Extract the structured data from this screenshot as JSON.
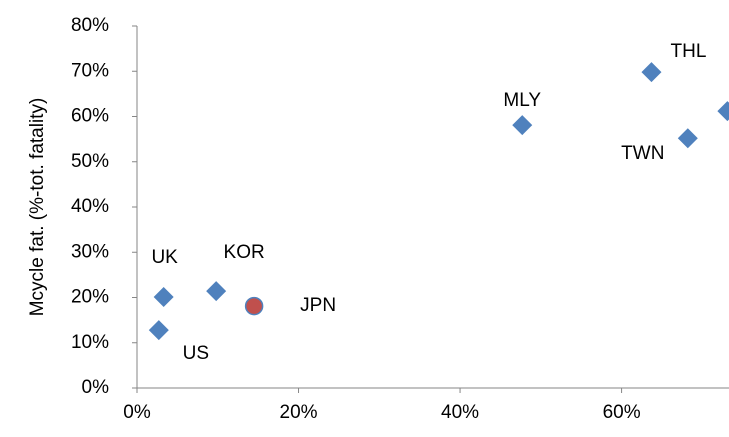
{
  "chart_data": {
    "type": "scatter",
    "y_label": "Mcycle fat. (%-tot. fatality)",
    "labels": [
      "US",
      "UK",
      "KOR",
      "JPN",
      "MLY",
      "THL",
      "TWN",
      null
    ],
    "x": [
      2.7,
      3.3,
      9.8,
      14.5,
      47.7,
      63.7,
      68.2,
      73.1
    ],
    "values": [
      12.8,
      20.1,
      21.4,
      18.1,
      58.1,
      69.8,
      55.2,
      61.2
    ],
    "colors": [
      "#4f81bd",
      "#4f81bd",
      "#4f81bd",
      "#c0504d",
      "#4f81bd",
      "#4f81bd",
      "#4f81bd",
      "#4f81bd"
    ],
    "markers": [
      "diamond",
      "diamond",
      "diamond",
      "circle",
      "diamond",
      "diamond",
      "diamond",
      "diamond"
    ],
    "xlim": [
      0,
      73.3
    ],
    "ylim": [
      0,
      80
    ],
    "xticks": [
      {
        "value": 0,
        "label": "0%"
      },
      {
        "value": 20,
        "label": "20%"
      },
      {
        "value": 40,
        "label": "40%"
      },
      {
        "value": 60,
        "label": "60%"
      }
    ],
    "yticks": [
      {
        "value": 0,
        "label": "0%"
      },
      {
        "value": 10,
        "label": "10%"
      },
      {
        "value": 20,
        "label": "20%"
      },
      {
        "value": 30,
        "label": "30%"
      },
      {
        "value": 40,
        "label": "40%"
      },
      {
        "value": 50,
        "label": "50%"
      },
      {
        "value": 60,
        "label": "60%"
      },
      {
        "value": 70,
        "label": "70%"
      },
      {
        "value": 80,
        "label": "80%"
      }
    ],
    "grid": false
  }
}
